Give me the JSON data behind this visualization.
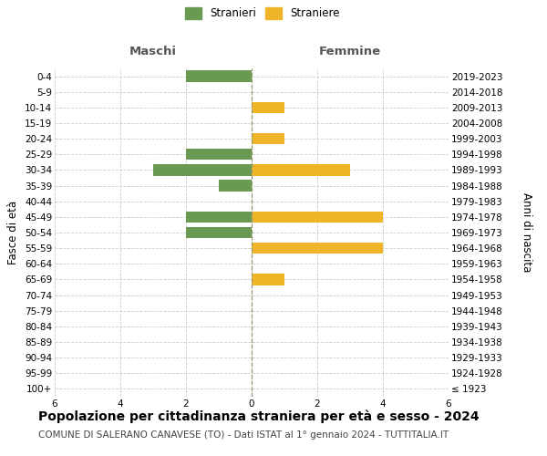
{
  "age_groups": [
    "100+",
    "95-99",
    "90-94",
    "85-89",
    "80-84",
    "75-79",
    "70-74",
    "65-69",
    "60-64",
    "55-59",
    "50-54",
    "45-49",
    "40-44",
    "35-39",
    "30-34",
    "25-29",
    "20-24",
    "15-19",
    "10-14",
    "5-9",
    "0-4"
  ],
  "birth_years": [
    "≤ 1923",
    "1924-1928",
    "1929-1933",
    "1934-1938",
    "1939-1943",
    "1944-1948",
    "1949-1953",
    "1954-1958",
    "1959-1963",
    "1964-1968",
    "1969-1973",
    "1974-1978",
    "1979-1983",
    "1984-1988",
    "1989-1993",
    "1994-1998",
    "1999-2003",
    "2004-2008",
    "2009-2013",
    "2014-2018",
    "2019-2023"
  ],
  "males": [
    0,
    0,
    0,
    0,
    0,
    0,
    0,
    0,
    0,
    0,
    2,
    2,
    0,
    1,
    3,
    2,
    0,
    0,
    0,
    0,
    2
  ],
  "females": [
    0,
    0,
    0,
    0,
    0,
    0,
    0,
    1,
    0,
    4,
    0,
    4,
    0,
    0,
    3,
    0,
    1,
    0,
    1,
    0,
    0
  ],
  "male_color": "#6a9a52",
  "female_color": "#f0b429",
  "xlim": 6,
  "title": "Popolazione per cittadinanza straniera per età e sesso - 2024",
  "subtitle": "COMUNE DI SALERANO CANAVESE (TO) - Dati ISTAT al 1° gennaio 2024 - TUTTITALIA.IT",
  "xlabel_left": "Maschi",
  "xlabel_right": "Femmine",
  "ylabel_left": "Fasce di età",
  "ylabel_right": "Anni di nascita",
  "legend_male": "Stranieri",
  "legend_female": "Straniere",
  "bg_color": "#ffffff",
  "grid_color": "#cccccc",
  "title_fontsize": 10,
  "subtitle_fontsize": 7.5,
  "tick_fontsize": 7.5,
  "label_fontsize": 8.5
}
